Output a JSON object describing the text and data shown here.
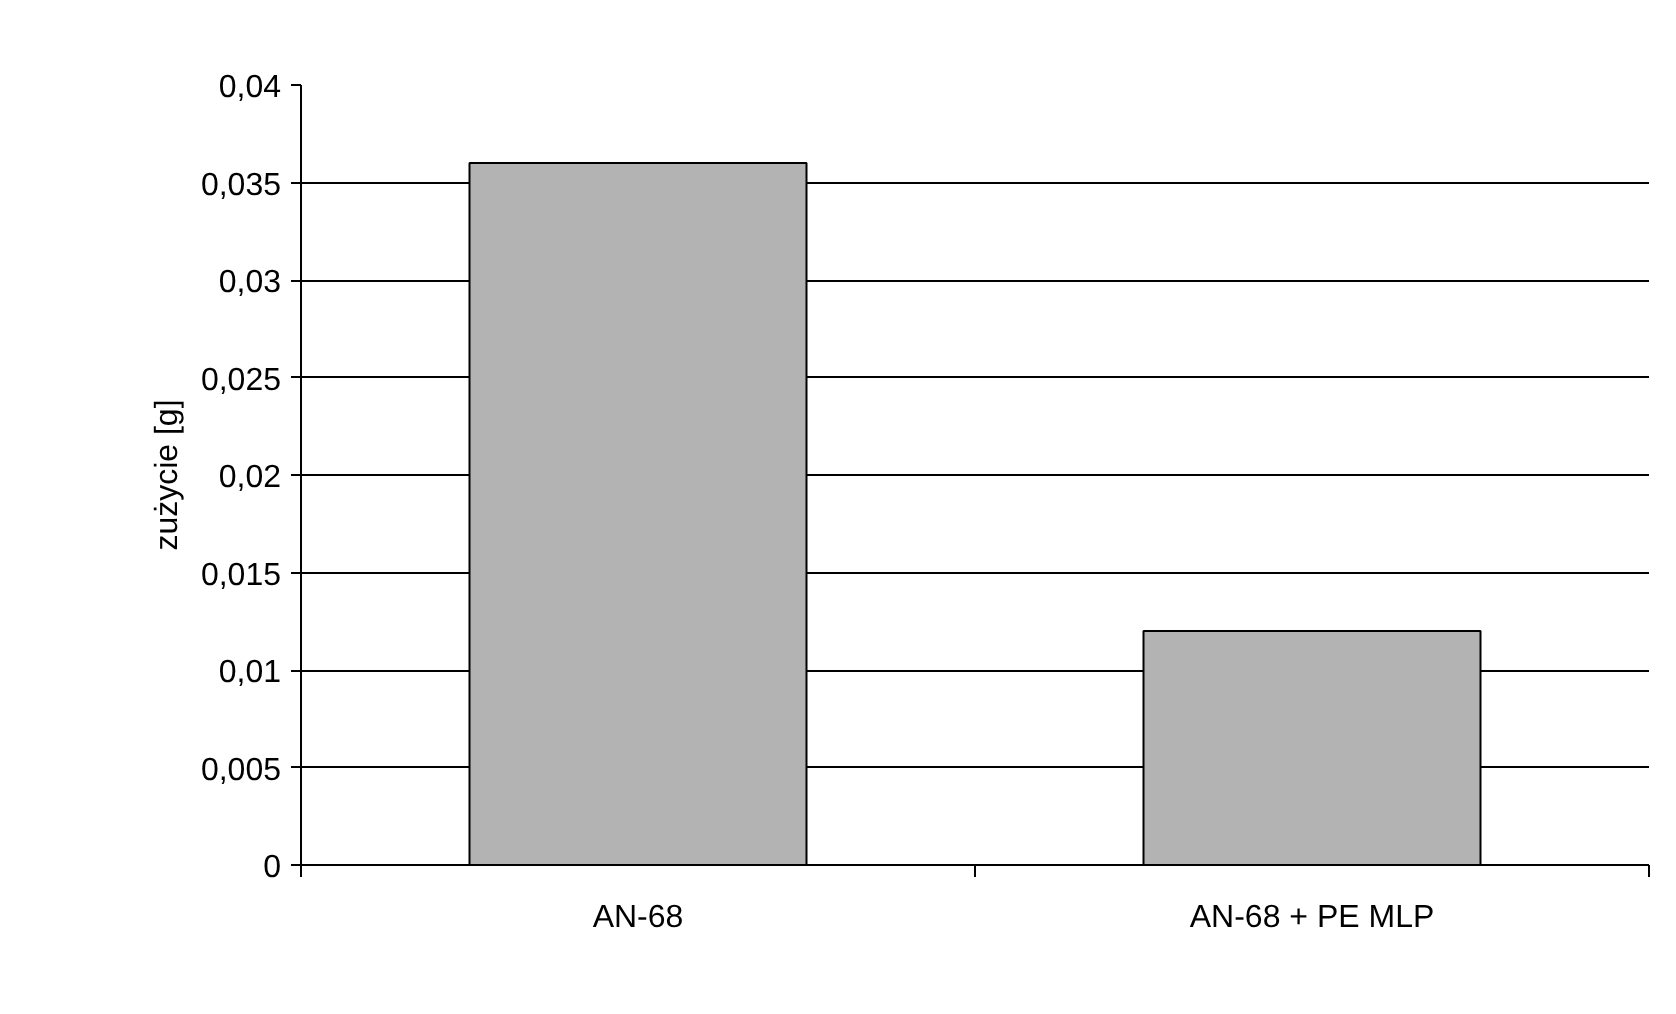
{
  "chart_data": {
    "type": "bar",
    "ylabel": "zużycie [g]",
    "categories": [
      "AN-68",
      "AN-68 + PE MLP"
    ],
    "values": [
      0.036,
      0.012
    ],
    "color": "#b3b3b3",
    "ylim": [
      0,
      0.04
    ],
    "yticks": [
      {
        "value": 0,
        "label": "0"
      },
      {
        "value": 0.005,
        "label": "0,005"
      },
      {
        "value": 0.01,
        "label": "0,01"
      },
      {
        "value": 0.015,
        "label": "0,015"
      },
      {
        "value": 0.02,
        "label": "0,02"
      },
      {
        "value": 0.025,
        "label": "0,025"
      },
      {
        "value": 0.03,
        "label": "0,03"
      },
      {
        "value": 0.035,
        "label": "0,035"
      },
      {
        "value": 0.04,
        "label": "0,04"
      }
    ],
    "grid": "y"
  }
}
